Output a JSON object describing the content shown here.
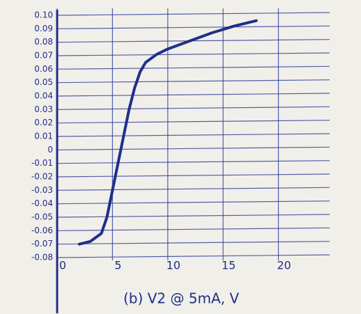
{
  "chart_data": {
    "type": "line",
    "caption": "(b) V2 @ 5mA, V",
    "color": "#1e2f8a",
    "grid": true,
    "x": [
      2,
      3,
      4,
      4.5,
      5,
      5.5,
      6,
      6.5,
      7,
      7.5,
      8,
      9,
      10,
      12,
      14,
      16,
      18
    ],
    "values": [
      -0.07,
      -0.068,
      -0.062,
      -0.05,
      -0.03,
      -0.01,
      0.01,
      0.03,
      0.046,
      0.058,
      0.065,
      0.071,
      0.075,
      0.081,
      0.087,
      0.092,
      0.096
    ],
    "xlim": [
      0,
      24
    ],
    "xticks": [
      0,
      5,
      10,
      15,
      20
    ],
    "ylim": [
      -0.08,
      0.1
    ],
    "yticks": [
      {
        "value": 0.1,
        "label": "0.10"
      },
      {
        "value": 0.09,
        "label": "0.09"
      },
      {
        "value": 0.08,
        "label": "0.08"
      },
      {
        "value": 0.07,
        "label": "0.07"
      },
      {
        "value": 0.06,
        "label": "0.06"
      },
      {
        "value": 0.05,
        "label": "0.05"
      },
      {
        "value": 0.04,
        "label": "0.04"
      },
      {
        "value": 0.03,
        "label": "0.03"
      },
      {
        "value": 0.02,
        "label": "0.02"
      },
      {
        "value": 0.01,
        "label": "0.01"
      },
      0,
      {
        "value": -0.01,
        "label": "-0.01"
      },
      {
        "value": -0.02,
        "label": "-0.02"
      },
      {
        "value": -0.03,
        "label": "-0.03"
      },
      {
        "value": -0.04,
        "label": "-0.04"
      },
      {
        "value": -0.05,
        "label": "-0.05"
      },
      {
        "value": -0.06,
        "label": "-0.06"
      },
      {
        "value": -0.07,
        "label": "-0.07"
      },
      {
        "value": -0.08,
        "label": "-0.08"
      }
    ]
  }
}
